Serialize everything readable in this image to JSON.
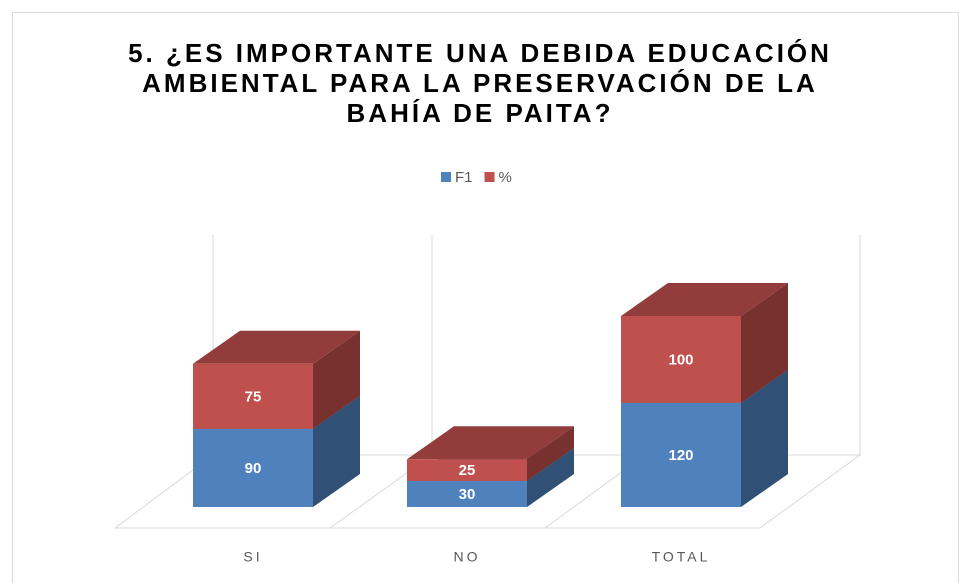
{
  "chart_data": {
    "type": "bar3d_stacked",
    "title": "5. ¿ES IMPORTANTE UNA DEBIDA EDUCACIÓN AMBIENTAL PARA LA PRESERVACIÓN DE LA BAHÍA DE PAITA?",
    "categories": [
      "SI",
      "NO",
      "TOTAL"
    ],
    "series": [
      {
        "name": "F1",
        "color": "#4f81bd",
        "values": [
          90,
          30,
          120
        ]
      },
      {
        "name": "%",
        "color": "#c0504d",
        "values": [
          75,
          25,
          100
        ]
      }
    ],
    "legend": "top"
  }
}
